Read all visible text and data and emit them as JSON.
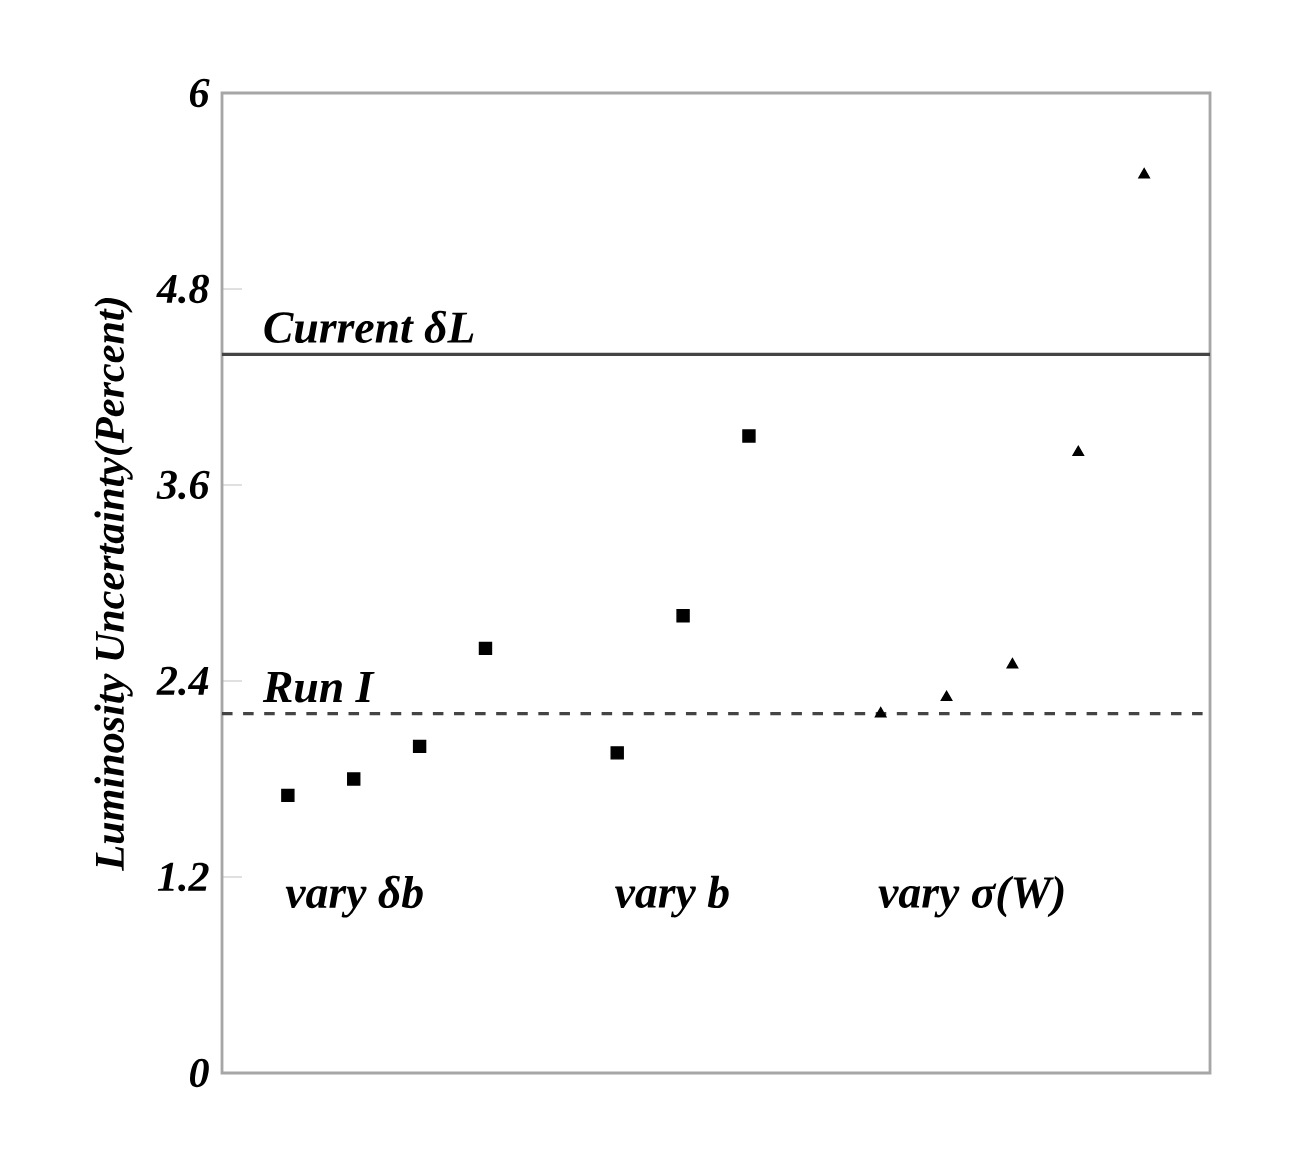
{
  "chart_data": {
    "type": "scatter",
    "ylabel": "Luminosity Uncertainty(Percent)",
    "categories": [
      null,
      null,
      null,
      null,
      null,
      null,
      null,
      null,
      null,
      null,
      null,
      null,
      null,
      null
    ],
    "series": [
      {
        "color": "#000000",
        "marker": "square",
        "values": [
          1.7,
          1.8,
          2.0,
          2.6,
          null,
          null,
          null,
          null,
          null,
          null,
          null,
          null,
          null,
          null
        ]
      },
      {
        "color": "#000000",
        "marker": "square",
        "values": [
          null,
          null,
          null,
          null,
          null,
          1.96,
          2.8,
          3.9,
          null,
          null,
          null,
          null,
          null,
          null
        ]
      },
      {
        "color": "#000000",
        "marker": "triangle",
        "values": [
          null,
          null,
          null,
          null,
          null,
          null,
          null,
          null,
          null,
          2.2,
          2.3,
          2.5,
          3.8,
          5.5
        ]
      }
    ],
    "annotations": [
      "vary δb",
      "vary b",
      "vary σ(W)"
    ],
    "ref_lines": [
      {
        "axis": "y",
        "value": 4.4,
        "label": "Current δL",
        "color": "#444444",
        "line_style": "solid"
      },
      {
        "axis": "y",
        "value": 2.2,
        "label": "Run I",
        "color": "#444444",
        "line_style": "dashed"
      }
    ],
    "ylim": [
      0,
      6
    ],
    "yticks": [
      0,
      1.2,
      2.4,
      3.6,
      4.8,
      6
    ],
    "tick_labels": "y",
    "grid": false
  }
}
